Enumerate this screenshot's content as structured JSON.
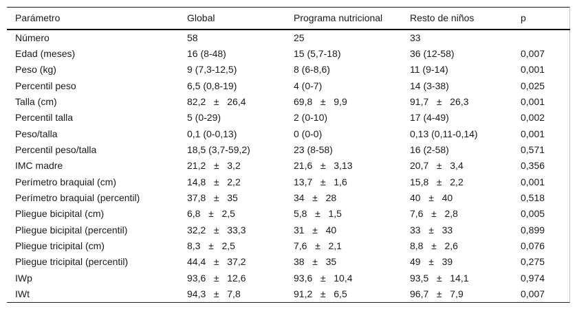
{
  "page": {
    "background_color": "#ffffff",
    "text_color": "#1a1a1a",
    "rule_color": "#000000",
    "faint_edge_color": "#c9c9c9"
  },
  "table": {
    "columns": [
      "Parámetro",
      "Global",
      "Programa nutricional",
      "Resto de niños",
      "p"
    ],
    "rows": [
      [
        "Número",
        "58",
        "25",
        "33",
        ""
      ],
      [
        "Edad (meses)",
        "16 (8-48)",
        "15 (5,7-18)",
        "36 (12-58)",
        "0,007"
      ],
      [
        "Peso (kg)",
        "9 (7,3-12,5)",
        "8 (6-8,6)",
        "11 (9-14)",
        "0,001"
      ],
      [
        "Percentil peso",
        "6,5 (0,8-19)",
        "4 (0-7)",
        "14 (3-38)",
        "0,025"
      ],
      [
        "Talla (cm)",
        "82,2   ±   26,4",
        "69,8   ±   9,9",
        "91,7   ±   26,3",
        "0,001"
      ],
      [
        "Percentil talla",
        "5 (0-29)",
        "2 (0-10)",
        "17 (4-49)",
        "0,002"
      ],
      [
        "Peso/talla",
        "0,1 (0-0,13)",
        "0 (0-0)",
        "0,13 (0,11-0,14)",
        "0,001"
      ],
      [
        "Percentil peso/talla",
        "18,5 (3,7-59,2)",
        "23 (8-58)",
        "16 (2-58)",
        "0,571"
      ],
      [
        "IMC madre",
        "21,2   ±   3,2",
        "21,6   ±   3,13",
        "20,7   ±   3,4",
        "0,356"
      ],
      [
        "Perímetro braquial (cm)",
        "14,8   ±   2,2",
        "13,7   ±   1,6",
        "15,8   ±   2,2",
        "0,001"
      ],
      [
        "Perímetro braquial (percentil)",
        "37,8   ±   35",
        "34   ±   28",
        "40   ±   40",
        "0,518"
      ],
      [
        "Pliegue bicipital (cm)",
        "6,8   ±   2,5",
        "5,8   ±   1,5",
        "7,6   ±   2,8",
        "0,005"
      ],
      [
        "Pliegue bicipital (percentil)",
        "32,2   ±   33,3",
        "31   ±   40",
        "33   ±   33",
        "0,899"
      ],
      [
        "Pliegue tricipital (cm)",
        "8,3   ±   2,5",
        "7,6   ±   2,1",
        "8,8   ±   2,6",
        "0,076"
      ],
      [
        "Pliegue tricipital (percentil)",
        "44,4   ±   37,2",
        "38   ±   35",
        "49   ±   39",
        "0,275"
      ],
      [
        "IWp",
        "93,6   ±   12,6",
        "93,6   ±   10,4",
        "93,5   ±   14,1",
        "0,974"
      ],
      [
        "IWt",
        "94,3   ±   7,8",
        "91,2   ±   6,5",
        "96,7   ±   7,9",
        "0,007"
      ]
    ]
  }
}
